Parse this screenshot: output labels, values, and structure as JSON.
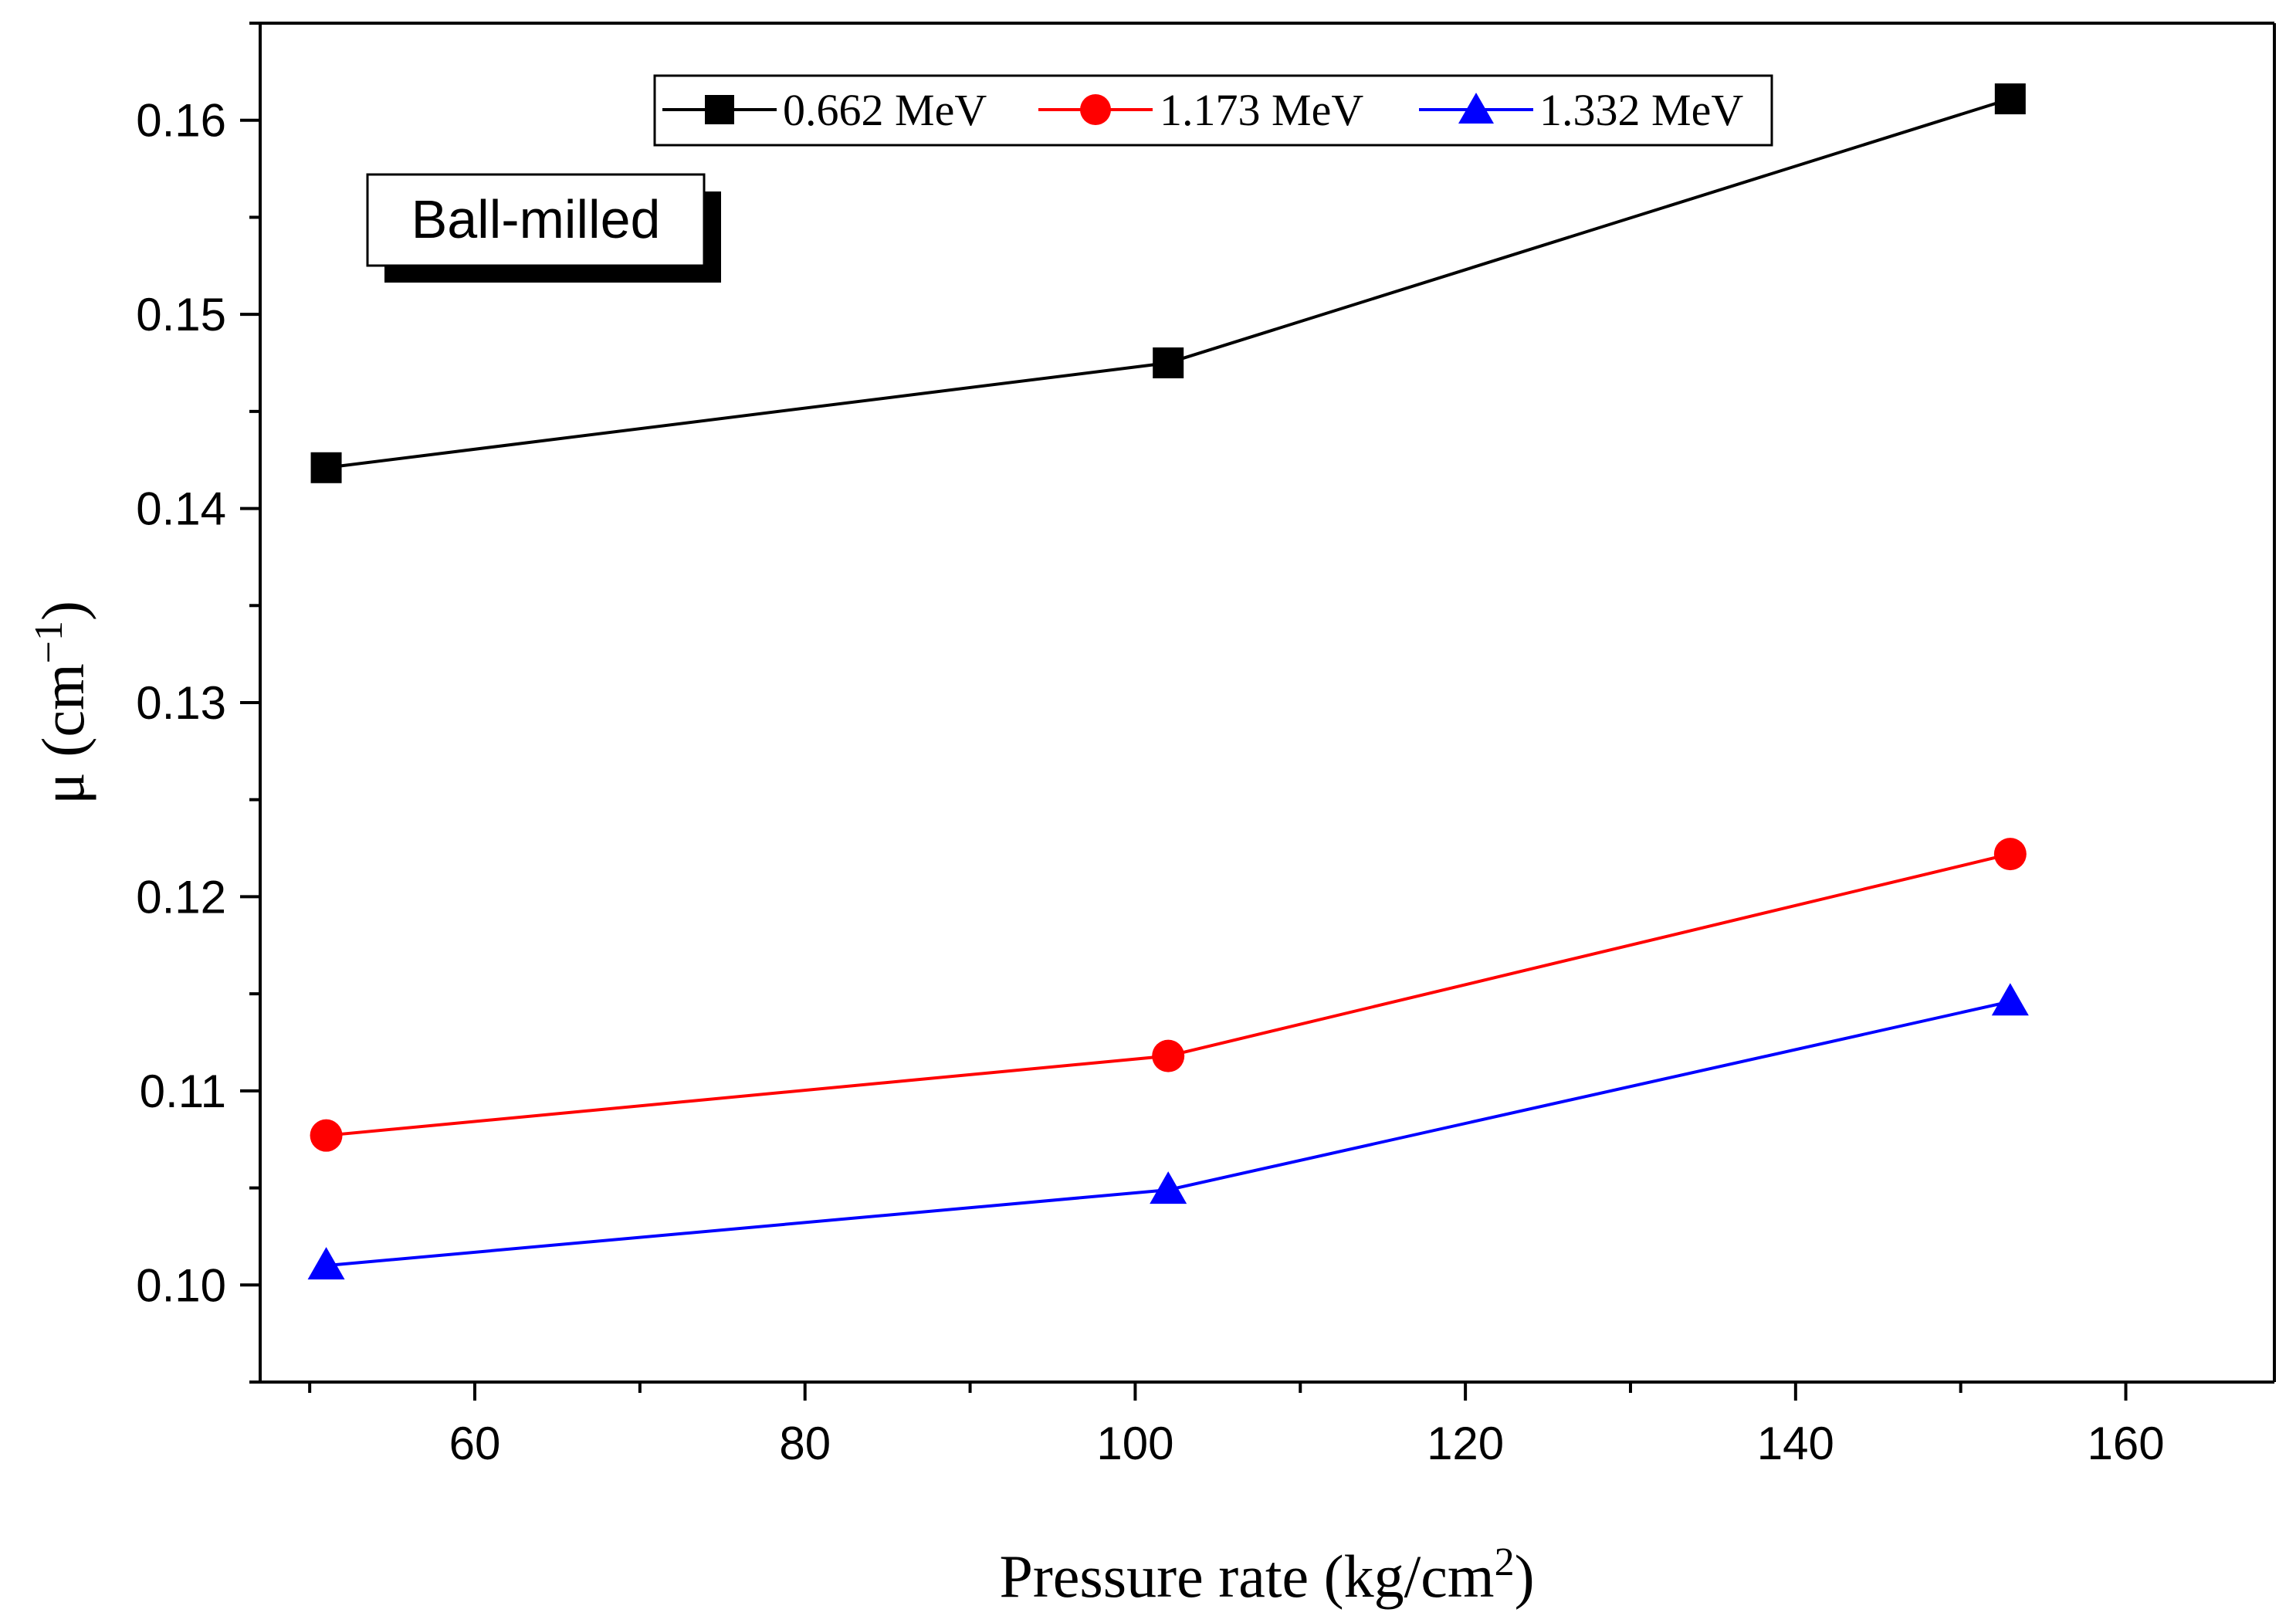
{
  "chart_data": {
    "type": "line",
    "title": "",
    "xlabel": "Pressure rate (kg/cm",
    "xlabel_sup": "2",
    "xlabel_end": ")",
    "ylabel": "μ (cm",
    "ylabel_sup": "−1",
    "ylabel_end": ")",
    "xlim": [
      47,
      169
    ],
    "ylim": [
      0.095,
      0.165
    ],
    "x_ticks": [
      60,
      80,
      100,
      120,
      140,
      160
    ],
    "x_tick_labels": [
      "60",
      "80",
      "100",
      "120",
      "140",
      "160"
    ],
    "y_ticks": [
      0.1,
      0.11,
      0.12,
      0.13,
      0.14,
      0.15,
      0.16
    ],
    "y_tick_labels": [
      "0.10",
      "0.11",
      "0.12",
      "0.13",
      "0.14",
      "0.15",
      "0.16"
    ],
    "x": [
      51,
      102,
      153
    ],
    "series": [
      {
        "name": "0.662 MeV",
        "color": "#000000",
        "marker": "square",
        "values": [
          0.1421,
          0.1475,
          0.1611
        ]
      },
      {
        "name": "1.173 MeV",
        "color": "#ff0000",
        "marker": "circle",
        "values": [
          0.1077,
          0.1118,
          0.1222
        ]
      },
      {
        "name": "1.332 MeV",
        "color": "#0000ff",
        "marker": "triangle",
        "values": [
          0.101,
          0.1049,
          0.1146
        ]
      }
    ],
    "annotation": "Ball-milled",
    "legend_position": "top-center",
    "grid": false
  }
}
